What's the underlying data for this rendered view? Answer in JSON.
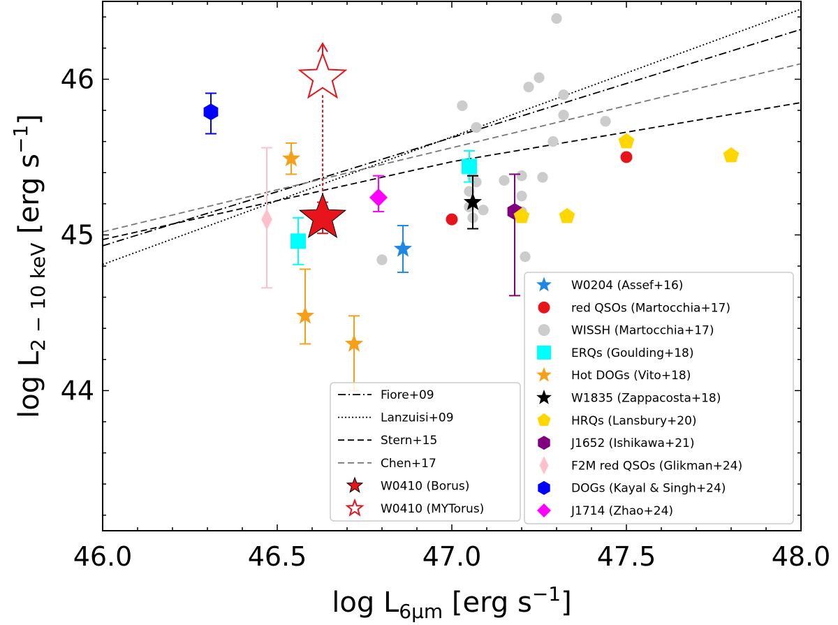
{
  "chart_data": {
    "type": "scatter",
    "xlim": [
      46.0,
      48.0
    ],
    "ylim": [
      43.1,
      46.5
    ],
    "grid": false,
    "x_ticks": [
      "46.0",
      "46.5",
      "47.0",
      "47.5",
      "48.0"
    ],
    "y_ticks": [
      "44",
      "45",
      "46"
    ],
    "xlabel": "log L6μm [erg s−1]",
    "ylabel": "log L2−10 keV [erg s−1]",
    "lines": [
      {
        "name": "Fiore+09",
        "style": "dashdot",
        "color": "#000000",
        "x": [
          46.0,
          48.0
        ],
        "y": [
          44.93,
          46.32
        ]
      },
      {
        "name": "Lanzuisi+09",
        "style": "dotted",
        "color": "#000000",
        "x": [
          46.0,
          48.0
        ],
        "y": [
          44.81,
          46.45
        ]
      },
      {
        "name": "Stern+15",
        "style": "dashed",
        "color": "#000000",
        "x": [
          46.0,
          47.0,
          48.0
        ],
        "y": [
          44.97,
          45.47,
          45.85
        ]
      },
      {
        "name": "Chen+17",
        "style": "dashed",
        "color": "#777777",
        "x": [
          46.0,
          48.0
        ],
        "y": [
          45.02,
          46.1
        ]
      }
    ],
    "series": [
      {
        "name": "W0410 (Borus)",
        "marker": "star",
        "color": "#e8141b",
        "size": 30,
        "edge": "#000000",
        "points": [
          {
            "x": 46.63,
            "y": 45.11,
            "yerr": [
              0.1,
              0.1
            ]
          }
        ]
      },
      {
        "name": "W0410 (MYTorus)",
        "marker": "star-open",
        "color": "#e8141b",
        "size": 30,
        "points": [
          {
            "x": 46.63,
            "y": 46.01,
            "lower_limit": true
          }
        ]
      },
      {
        "name": "W0204 (Assef+16)",
        "marker": "star",
        "color": "#1e88e5",
        "size": 12,
        "points": [
          {
            "x": 46.86,
            "y": 44.91,
            "yerr": [
              0.15,
              0.15
            ]
          }
        ]
      },
      {
        "name": "red QSOs (Martocchia+17)",
        "marker": "circle",
        "color": "#e8141b",
        "size": 10,
        "points": [
          {
            "x": 47.0,
            "y": 45.1
          },
          {
            "x": 47.5,
            "y": 45.5
          }
        ]
      },
      {
        "name": "WISSH (Martocchia+17)",
        "marker": "circle",
        "color": "#cccccc",
        "size": 9,
        "points": [
          {
            "x": 46.8,
            "y": 44.84
          },
          {
            "x": 47.03,
            "y": 45.83
          },
          {
            "x": 47.07,
            "y": 45.69
          },
          {
            "x": 47.06,
            "y": 45.37
          },
          {
            "x": 47.07,
            "y": 45.34
          },
          {
            "x": 47.05,
            "y": 45.28
          },
          {
            "x": 47.05,
            "y": 45.18
          },
          {
            "x": 47.06,
            "y": 45.11
          },
          {
            "x": 47.09,
            "y": 45.16
          },
          {
            "x": 47.15,
            "y": 45.35
          },
          {
            "x": 47.2,
            "y": 45.38
          },
          {
            "x": 47.2,
            "y": 45.25
          },
          {
            "x": 47.2,
            "y": 45.15
          },
          {
            "x": 47.21,
            "y": 44.86
          },
          {
            "x": 47.22,
            "y": 45.95
          },
          {
            "x": 47.25,
            "y": 46.01
          },
          {
            "x": 47.26,
            "y": 45.37
          },
          {
            "x": 47.29,
            "y": 45.6
          },
          {
            "x": 47.3,
            "y": 46.39
          },
          {
            "x": 47.32,
            "y": 45.9
          },
          {
            "x": 47.32,
            "y": 45.77
          },
          {
            "x": 47.44,
            "y": 45.73
          }
        ]
      },
      {
        "name": "ERQs (Goulding+18)",
        "marker": "square",
        "color": "#00ffff",
        "size": 11,
        "points": [
          {
            "x": 46.56,
            "y": 44.96,
            "yerr": [
              0.15,
              0.15
            ]
          },
          {
            "x": 47.05,
            "y": 45.44,
            "yerr": [
              0.1,
              0.1
            ]
          }
        ]
      },
      {
        "name": "Hot DOGs (Vito+18)",
        "marker": "star",
        "color": "#f5a01a",
        "size": 12,
        "points": [
          {
            "x": 46.54,
            "y": 45.49,
            "yerr": [
              0.1,
              0.1
            ]
          },
          {
            "x": 46.58,
            "y": 44.48,
            "yerr": [
              0.18,
              0.3
            ]
          },
          {
            "x": 46.72,
            "y": 44.3,
            "yerr": [
              0.3,
              0.18
            ]
          }
        ]
      },
      {
        "name": "W1835 (Zappacosta+18)",
        "marker": "star",
        "color": "#000000",
        "size": 12,
        "points": [
          {
            "x": 47.06,
            "y": 45.21,
            "yerr": [
              0.17,
              0.17
            ]
          }
        ]
      },
      {
        "name": "HRQs (Lansbury+20)",
        "marker": "pentagon",
        "color": "#ffd700",
        "size": 12,
        "points": [
          {
            "x": 47.2,
            "y": 45.12
          },
          {
            "x": 47.33,
            "y": 45.12
          },
          {
            "x": 47.5,
            "y": 45.6
          },
          {
            "x": 47.8,
            "y": 45.51
          }
        ]
      },
      {
        "name": "J1652 (Ishikawa+21)",
        "marker": "hexagon",
        "color": "#800080",
        "size": 12,
        "points": [
          {
            "x": 47.18,
            "y": 45.15,
            "yerr": [
              0.54,
              0.24
            ]
          }
        ]
      },
      {
        "name": "F2M red QSOs (Glikman+24)",
        "marker": "thin-diamond",
        "color": "#ffc0cb",
        "size": 12,
        "points": [
          {
            "x": 46.47,
            "y": 45.1,
            "yerr": [
              0.44,
              0.46
            ]
          }
        ]
      },
      {
        "name": "DOGs (Kayal & Singh+24)",
        "marker": "hexagon",
        "color": "#0000ff",
        "size": 12,
        "points": [
          {
            "x": 46.31,
            "y": 45.79,
            "yerr": [
              0.14,
              0.12
            ]
          }
        ]
      },
      {
        "name": " J1714 (Zhao+24)",
        "marker": "diamond",
        "color": "#ff00ff",
        "size": 13,
        "points": [
          {
            "x": 46.79,
            "y": 45.24,
            "yerr": [
              0.09,
              0.14
            ]
          }
        ]
      }
    ],
    "legend_left": {
      "position": "lower-center",
      "entries": [
        {
          "label": "Fiore+09",
          "kind": "line",
          "style": "dashdot",
          "color": "#000000"
        },
        {
          "label": "Lanzuisi+09",
          "kind": "line",
          "style": "dotted",
          "color": "#000000"
        },
        {
          "label": "Stern+15",
          "kind": "line",
          "style": "dashed",
          "color": "#000000"
        },
        {
          "label": "Chen+17",
          "kind": "line",
          "style": "dashed",
          "color": "#777777"
        },
        {
          "label": "W0410 (Borus)",
          "kind": "marker",
          "marker": "star",
          "color": "#e8141b",
          "edge": "#000000"
        },
        {
          "label": "W0410 (MYTorus)",
          "kind": "marker",
          "marker": "star-open",
          "color": "#e8141b"
        }
      ]
    },
    "legend_right": {
      "position": "lower-right",
      "entries": [
        {
          "label": "W0204 (Assef+16)",
          "marker": "star",
          "color": "#1e88e5"
        },
        {
          "label": "red QSOs (Martocchia+17)",
          "marker": "circle",
          "color": "#e8141b"
        },
        {
          "label": "WISSH (Martocchia+17)",
          "marker": "circle",
          "color": "#cccccc"
        },
        {
          "label": "ERQs (Goulding+18)",
          "marker": "square",
          "color": "#00ffff"
        },
        {
          "label": "Hot DOGs (Vito+18)",
          "marker": "star",
          "color": "#f5a01a"
        },
        {
          "label": "W1835 (Zappacosta+18)",
          "marker": "star",
          "color": "#000000"
        },
        {
          "label": "HRQs (Lansbury+20)",
          "marker": "pentagon",
          "color": "#ffd700"
        },
        {
          "label": "J1652 (Ishikawa+21)",
          "marker": "hexagon",
          "color": "#800080"
        },
        {
          "label": "F2M red QSOs (Glikman+24)",
          "marker": "thin-diamond",
          "color": "#ffc0cb"
        },
        {
          "label": "DOGs (Kayal & Singh+24)",
          "marker": "hexagon",
          "color": "#0000ff"
        },
        {
          "label": " J1714 (Zhao+24)",
          "marker": "diamond",
          "color": "#ff00ff"
        }
      ]
    }
  }
}
